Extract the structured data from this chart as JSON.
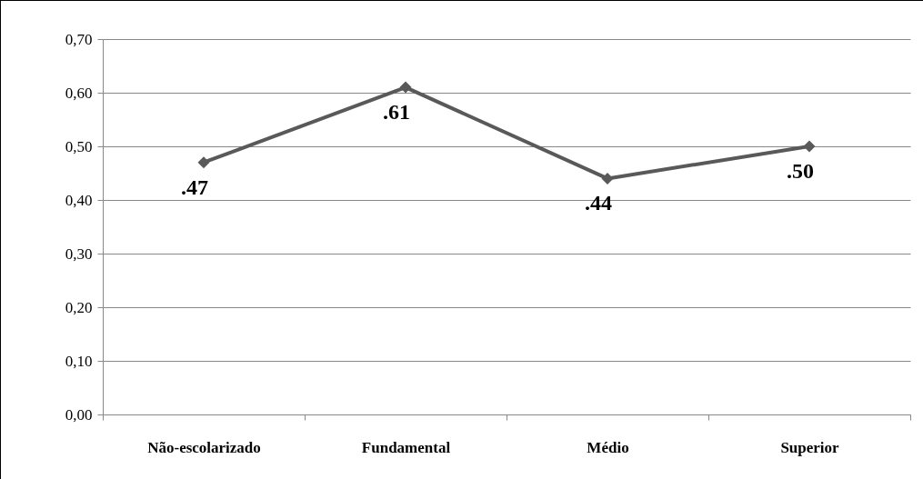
{
  "chart_data": {
    "type": "line",
    "categories": [
      "Não-escolarizado",
      "Fundamental",
      "Médio",
      "Superior"
    ],
    "series": [
      {
        "color": "#595959",
        "values": [
          0.47,
          0.61,
          0.44,
          0.5
        ],
        "value_labels": [
          ".47",
          ".61",
          ".44",
          ".50"
        ]
      }
    ],
    "ylim": [
      0,
      0.7
    ],
    "yticks": [
      {
        "value": 0,
        "label": "0,00"
      },
      {
        "value": 0.1,
        "label": "0,10"
      },
      {
        "value": 0.2,
        "label": "0,20"
      },
      {
        "value": 0.3,
        "label": "0,30"
      },
      {
        "value": 0.4,
        "label": "0,40"
      },
      {
        "value": 0.5,
        "label": "0,50"
      },
      {
        "value": 0.6,
        "label": "0,60"
      },
      {
        "value": 0.7,
        "label": "0,70"
      }
    ],
    "grid": "y",
    "marker": "diamond",
    "line_style": "solid"
  }
}
